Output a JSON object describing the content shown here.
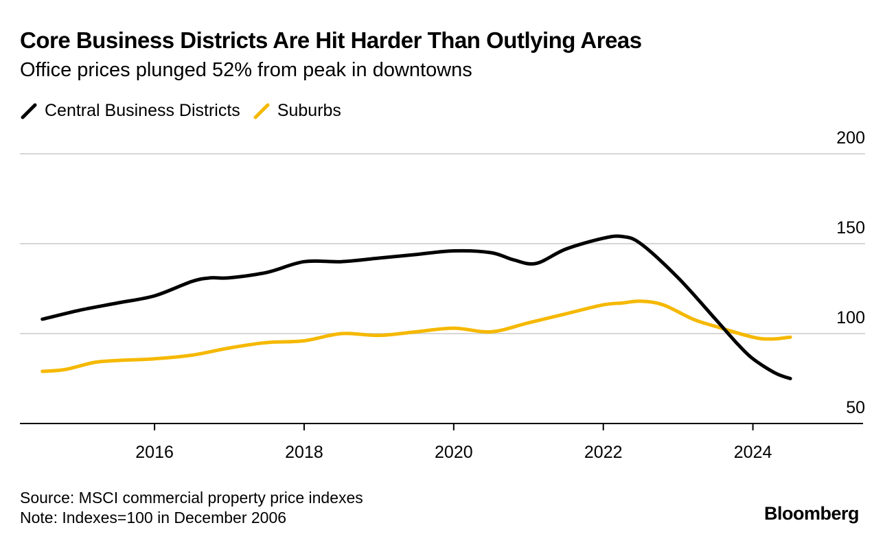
{
  "chart_data": {
    "type": "line",
    "title": "Core Business Districts Are Hit Harder Than Outlying Areas",
    "subtitle": "Office prices plunged 52% from peak in downtowns",
    "xlabel": "",
    "ylabel": "",
    "xlim": [
      2014.2,
      2025.5
    ],
    "ylim": [
      50,
      200
    ],
    "y_ticks": [
      200,
      150,
      100,
      50
    ],
    "x_ticks": [
      2016,
      2018,
      2020,
      2022,
      2024
    ],
    "legend": "top-left",
    "series": [
      {
        "name": "Central Business Districts",
        "color": "#000000",
        "points": [
          [
            2014.5,
            108
          ],
          [
            2015.0,
            113
          ],
          [
            2015.5,
            117
          ],
          [
            2016.0,
            121
          ],
          [
            2016.5,
            129
          ],
          [
            2016.75,
            131
          ],
          [
            2017.0,
            131
          ],
          [
            2017.5,
            134
          ],
          [
            2018.0,
            140
          ],
          [
            2018.5,
            140
          ],
          [
            2019.0,
            142
          ],
          [
            2019.5,
            144
          ],
          [
            2020.0,
            146
          ],
          [
            2020.5,
            145
          ],
          [
            2020.8,
            141
          ],
          [
            2021.1,
            139
          ],
          [
            2021.5,
            147
          ],
          [
            2022.0,
            153
          ],
          [
            2022.25,
            154
          ],
          [
            2022.5,
            150
          ],
          [
            2023.0,
            131
          ],
          [
            2023.5,
            108
          ],
          [
            2023.8,
            94
          ],
          [
            2024.0,
            86
          ],
          [
            2024.3,
            78
          ],
          [
            2024.5,
            75
          ]
        ]
      },
      {
        "name": "Suburbs",
        "color": "#f5b800",
        "points": [
          [
            2014.5,
            79
          ],
          [
            2014.8,
            80
          ],
          [
            2015.2,
            84
          ],
          [
            2015.5,
            85
          ],
          [
            2016.0,
            86
          ],
          [
            2016.5,
            88
          ],
          [
            2017.0,
            92
          ],
          [
            2017.5,
            95
          ],
          [
            2018.0,
            96
          ],
          [
            2018.5,
            100
          ],
          [
            2019.0,
            99
          ],
          [
            2019.5,
            101
          ],
          [
            2020.0,
            103
          ],
          [
            2020.5,
            101
          ],
          [
            2021.0,
            106
          ],
          [
            2021.5,
            111
          ],
          [
            2022.0,
            116
          ],
          [
            2022.25,
            117
          ],
          [
            2022.5,
            118
          ],
          [
            2022.8,
            116
          ],
          [
            2023.2,
            108
          ],
          [
            2023.5,
            104
          ],
          [
            2024.0,
            98
          ],
          [
            2024.25,
            97
          ],
          [
            2024.5,
            98
          ]
        ]
      }
    ]
  },
  "footer": {
    "source": "Source: MSCI commercial property price indexes",
    "note": "Note: Indexes=100 in December 2006"
  },
  "brand": "Bloomberg"
}
